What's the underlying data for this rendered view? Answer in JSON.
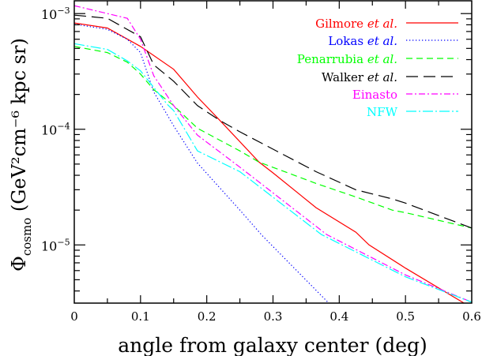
{
  "chart_data": {
    "type": "line",
    "title": "",
    "xlabel": "angle from galaxy center (deg)",
    "ylabel": {
      "symbol": "Φ",
      "subscript": "cosmo",
      "units": "(GeV²cm⁻⁶ kpc sr)"
    },
    "xlim": [
      0,
      0.6
    ],
    "ylim": [
      3.14e-06,
      0.00129
    ],
    "yscale": "log",
    "grid": false,
    "legend_position": "top-right",
    "x_ticks": [
      "0",
      "0.1",
      "0.2",
      "0.3",
      "0.4",
      "0.5",
      "0.6"
    ],
    "x_tick_values": [
      0,
      0.1,
      0.2,
      0.3,
      0.4,
      0.5,
      0.6
    ],
    "y_ticks": [
      {
        "value": 0.001,
        "base": "10",
        "exp": "−3"
      },
      {
        "value": 0.0001,
        "base": "10",
        "exp": "−4"
      },
      {
        "value": 1e-05,
        "base": "10",
        "exp": "−5"
      }
    ],
    "series": [
      {
        "name": "Gilmore",
        "suffix": "et al.",
        "color": "#ff0000",
        "style": "solid",
        "x": [
          0,
          0.05,
          0.1,
          0.15,
          0.186,
          0.22,
          0.279,
          0.3,
          0.365,
          0.425,
          0.445,
          0.5,
          0.59,
          0.6
        ],
        "y": [
          0.00083,
          0.00075,
          0.00052,
          0.00033,
          0.00019,
          0.000119,
          5.2e-05,
          4.2e-05,
          2.1e-05,
          1.29e-05,
          1e-05,
          6.3e-06,
          3.1e-06,
          2.9e-06
        ]
      },
      {
        "name": "Lokas",
        "suffix": "et al.",
        "color": "#0000ff",
        "style": "dotted",
        "x": [
          0,
          0.05,
          0.08,
          0.1,
          0.12,
          0.15,
          0.186,
          0.25,
          0.284,
          0.385
        ],
        "y": [
          0.00081,
          0.00073,
          0.0006,
          0.00046,
          0.00021,
          0.000107,
          5.1e-05,
          2e-05,
          1.2e-05,
          3.1e-06
        ]
      },
      {
        "name": "Penarrubia",
        "suffix": "et al.",
        "color": "#00ff00",
        "style": "dashed",
        "x": [
          0,
          0.05,
          0.08,
          0.1,
          0.12,
          0.15,
          0.186,
          0.25,
          0.279,
          0.365,
          0.425,
          0.48,
          0.5,
          0.6
        ],
        "y": [
          0.00052,
          0.00046,
          0.00038,
          0.0003,
          0.00022,
          0.00016,
          0.000102,
          6.5e-05,
          5.2e-05,
          3.4e-05,
          2.6e-05,
          2e-05,
          1.9e-05,
          1.4e-05
        ]
      },
      {
        "name": "Walker",
        "suffix": "et al.",
        "color": "#000000",
        "style": "long-dashed",
        "x": [
          0,
          0.05,
          0.1,
          0.12,
          0.15,
          0.186,
          0.22,
          0.25,
          0.365,
          0.425,
          0.48,
          0.5,
          0.6
        ],
        "y": [
          0.00097,
          0.00091,
          0.00063,
          0.00036,
          0.00026,
          0.00016,
          0.000119,
          9.5e-05,
          4.3e-05,
          3e-05,
          2.5e-05,
          2.3e-05,
          1.4e-05
        ]
      },
      {
        "name": "Einasto",
        "suffix": "",
        "color": "#ff00ff",
        "style": "dot-dash",
        "x": [
          0,
          0.08,
          0.1,
          0.12,
          0.15,
          0.186,
          0.25,
          0.381,
          0.5,
          0.6
        ],
        "y": [
          0.00117,
          0.00091,
          0.0006,
          0.00029,
          0.00016,
          8.9e-05,
          4.7e-05,
          1.23e-05,
          5.5e-06,
          3.2e-06
        ]
      },
      {
        "name": "NFW",
        "suffix": "",
        "color": "#00ffff",
        "style": "long-dot-dash",
        "x": [
          0,
          0.05,
          0.08,
          0.1,
          0.12,
          0.14,
          0.15,
          0.186,
          0.25,
          0.373,
          0.5,
          0.6
        ],
        "y": [
          0.00055,
          0.00049,
          0.00039,
          0.00032,
          0.00023,
          0.000165,
          0.000145,
          6.5e-05,
          4.3e-05,
          1.23e-05,
          5.3e-06,
          3.2e-06
        ]
      }
    ]
  }
}
